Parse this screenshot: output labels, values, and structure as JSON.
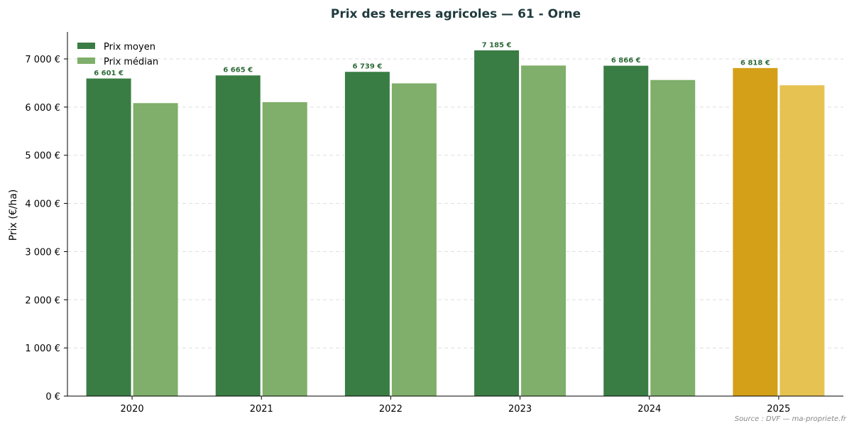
{
  "chart_data": {
    "type": "bar",
    "title": "Prix des terres agricoles — 61 - Orne",
    "xlabel": "",
    "ylabel": "Prix (€/ha)",
    "categories": [
      "2020",
      "2021",
      "2022",
      "2023",
      "2024",
      "2025"
    ],
    "series": [
      {
        "name": "Prix moyen",
        "values": [
          6601,
          6665,
          6739,
          7185,
          6866,
          6818
        ],
        "labels": [
          "6 601 €",
          "6 665 €",
          "6 739 €",
          "7 185 €",
          "6 866 €",
          "6 818 €"
        ],
        "color": "#3a7d44",
        "highlight_color": "#d4a017"
      },
      {
        "name": "Prix médian",
        "values": [
          6090,
          6110,
          6500,
          6870,
          6570,
          6460
        ],
        "color": "#7faf6a",
        "highlight_color": "#e6c252"
      }
    ],
    "highlight_category": "2025",
    "ylim": [
      0,
      7560
    ],
    "yticks": [
      0,
      1000,
      2000,
      3000,
      4000,
      5000,
      6000,
      7000
    ],
    "ytick_labels": [
      "0 €",
      "1 000 €",
      "2 000 €",
      "3 000 €",
      "4 000 €",
      "5 000 €",
      "6 000 €",
      "7 000 €"
    ],
    "grid": "horizontal dashed",
    "legend_position": "top-left",
    "source": "Source : DVF — ma-propriete.fr",
    "colors": {
      "title": "#1f3a3d",
      "label_text": "#2e6b38",
      "grid": "#dddddd",
      "axis": "#000000",
      "source": "#888888"
    }
  }
}
